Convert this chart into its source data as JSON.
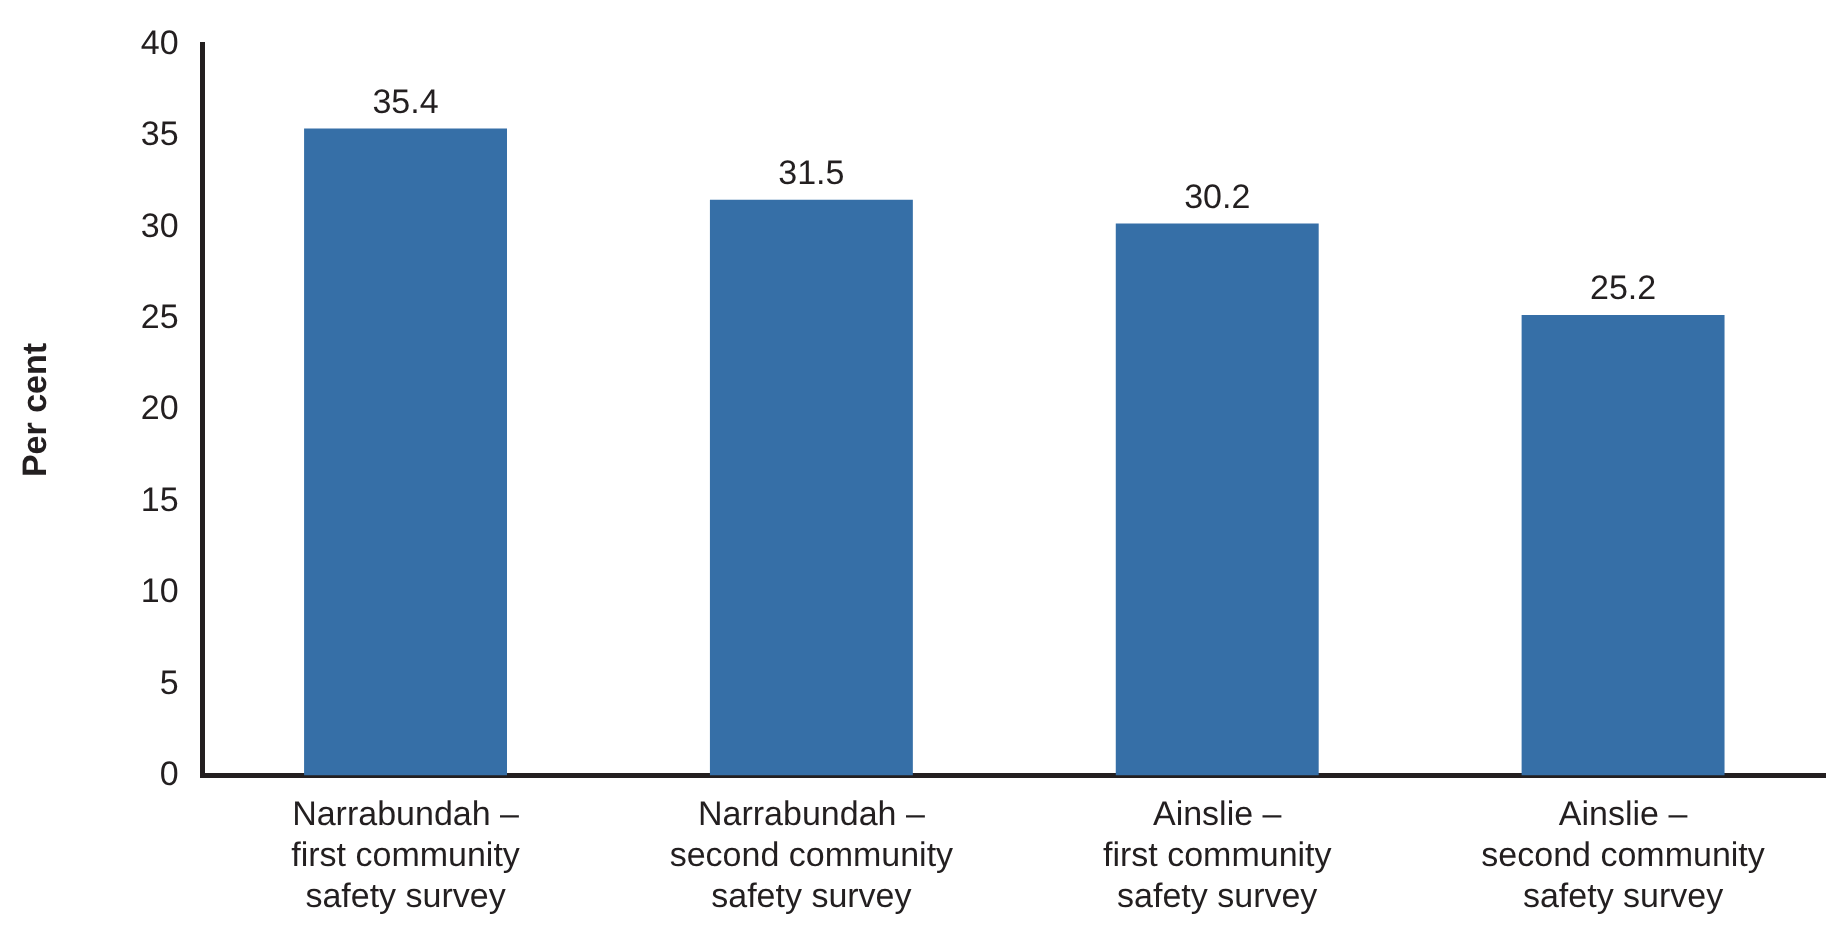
{
  "chart_data": {
    "type": "bar",
    "ylabel": "Per cent",
    "categories": [
      "Narrabundah –\nfirst community\nsafety survey",
      "Narrabundah –\nsecond community\nsafety survey",
      "Ainslie –\nfirst community\nsafety survey",
      "Ainslie –\nsecond community\nsafety survey"
    ],
    "values": [
      35.4,
      31.5,
      30.2,
      25.2
    ],
    "color": "#366fa7",
    "ylim": [
      0,
      40
    ],
    "yticks": [
      0,
      5,
      10,
      15,
      20,
      25,
      30,
      35,
      40
    ],
    "data_labels": true
  }
}
